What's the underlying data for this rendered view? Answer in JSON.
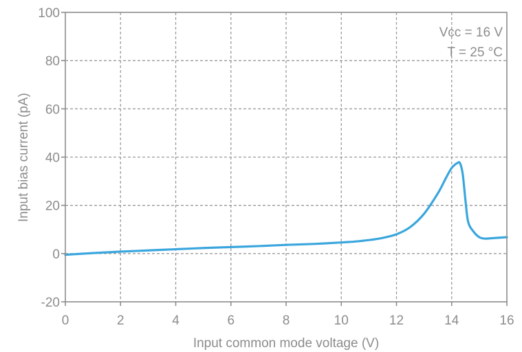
{
  "chart_data": {
    "type": "line",
    "title": "",
    "xlabel": "Input common mode voltage (V)",
    "ylabel": "Input bias current (pA)",
    "xlim": [
      0,
      16
    ],
    "ylim": [
      -20,
      100
    ],
    "xticks": [
      0,
      2,
      4,
      6,
      8,
      10,
      12,
      14,
      16
    ],
    "yticks": [
      -20,
      0,
      20,
      40,
      60,
      80,
      100
    ],
    "xtick_labels": [
      "0",
      "2",
      "4",
      "6",
      "8",
      "10",
      "12",
      "14",
      "16"
    ],
    "ytick_labels": [
      "-20",
      "0",
      "20",
      "40",
      "60",
      "80",
      "100"
    ],
    "grid": true,
    "legend": "none",
    "annotations": [
      "Vcc = 16 V",
      "T = 25 °C"
    ],
    "series": [
      {
        "color": "#3aa6dd",
        "x": [
          0,
          1,
          2,
          3,
          4,
          5,
          6,
          7,
          8,
          9,
          10,
          10.5,
          11,
          11.5,
          12,
          12.5,
          13,
          13.5,
          13.8,
          14,
          14.2,
          14.3,
          14.4,
          14.5,
          14.6,
          14.8,
          15,
          15.2,
          15.5,
          16
        ],
        "y": [
          -0.5,
          0.2,
          0.8,
          1.3,
          1.8,
          2.3,
          2.7,
          3.1,
          3.6,
          4.0,
          4.6,
          5.0,
          5.6,
          6.5,
          8.0,
          11.0,
          16.5,
          25.0,
          31.5,
          35.5,
          37.5,
          37.5,
          33.0,
          22.0,
          13.0,
          9.0,
          6.8,
          6.2,
          6.4,
          6.8
        ]
      }
    ]
  }
}
